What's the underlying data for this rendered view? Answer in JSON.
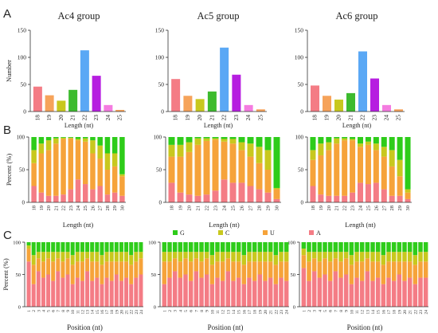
{
  "panel_letters": [
    "A",
    "B",
    "C"
  ],
  "colors": {
    "G": "#2ecc1a",
    "C": "#c8c81e",
    "U": "#f6a33a",
    "A": "#f47c85",
    "len18": "#f47c85",
    "len19": "#f6a35a",
    "len20": "#c8c81e",
    "len21": "#3dbb2e",
    "len22": "#5aa8f5",
    "len23": "#b61ee0",
    "len24": "#f47ce0",
    "len25": "#f6a35a"
  },
  "legend": [
    "G",
    "C",
    "U",
    "A"
  ],
  "chart_data": [
    {
      "type": "bar",
      "panel": "A",
      "title": "Ac4 group",
      "xlabel": "Length (nt)",
      "ylabel": "Number",
      "categories": [
        "18",
        "19",
        "20",
        "21",
        "22",
        "23",
        "24",
        "25"
      ],
      "values": [
        46,
        30,
        20,
        40,
        113,
        66,
        12,
        3
      ],
      "ylim": [
        0,
        150
      ],
      "yticks": [
        "0",
        "50",
        "100",
        "150"
      ]
    },
    {
      "type": "bar",
      "panel": "A",
      "title": "Ac5 group",
      "xlabel": "Length (nt)",
      "ylabel": "",
      "categories": [
        "18",
        "19",
        "20",
        "21",
        "22",
        "23",
        "24",
        "25"
      ],
      "values": [
        60,
        29,
        23,
        37,
        118,
        68,
        12,
        4
      ],
      "ylim": [
        0,
        150
      ],
      "yticks": [
        "0",
        "50",
        "100",
        "150"
      ]
    },
    {
      "type": "bar",
      "panel": "A",
      "title": "Ac6 group",
      "xlabel": "Length (nt)",
      "ylabel": "",
      "categories": [
        "18",
        "19",
        "20",
        "21",
        "22",
        "23",
        "24",
        "25"
      ],
      "values": [
        48,
        29,
        22,
        34,
        111,
        61,
        12,
        4
      ],
      "ylim": [
        0,
        150
      ],
      "yticks": [
        "0",
        "50",
        "100",
        "150"
      ]
    },
    {
      "type": "bar",
      "stacked": true,
      "panel": "B",
      "xlabel": "Length (nt)",
      "ylabel": "Percent (%)",
      "categories": [
        "18",
        "19",
        "20",
        "21",
        "22",
        "23",
        "24",
        "25",
        "26",
        "27",
        "28",
        "29",
        "30"
      ],
      "ylim": [
        0,
        100
      ],
      "yticks": [
        "0",
        "50",
        "100"
      ],
      "series": [
        {
          "name": "A",
          "values": [
            25,
            15,
            10,
            10,
            12,
            20,
            35,
            28,
            20,
            25,
            12,
            15,
            10
          ]
        },
        {
          "name": "U",
          "values": [
            35,
            60,
            70,
            80,
            85,
            78,
            60,
            65,
            55,
            42,
            38,
            40,
            30
          ]
        },
        {
          "name": "C",
          "values": [
            20,
            15,
            15,
            8,
            2,
            1,
            2,
            5,
            20,
            20,
            25,
            20,
            3
          ]
        },
        {
          "name": "G",
          "values": [
            20,
            10,
            5,
            2,
            1,
            1,
            3,
            2,
            5,
            13,
            25,
            25,
            57
          ]
        }
      ]
    },
    {
      "type": "bar",
      "stacked": true,
      "panel": "B",
      "xlabel": "Length (nt)",
      "ylabel": "",
      "categories": [
        "18",
        "19",
        "20",
        "21",
        "22",
        "23",
        "24",
        "25",
        "26",
        "27",
        "28",
        "29",
        "30"
      ],
      "ylim": [
        0,
        100
      ],
      "yticks": [
        "0",
        "50",
        "100"
      ],
      "series": [
        {
          "name": "A",
          "values": [
            30,
            15,
            12,
            10,
            12,
            18,
            35,
            30,
            30,
            25,
            20,
            15,
            5
          ]
        },
        {
          "name": "U",
          "values": [
            40,
            55,
            65,
            78,
            82,
            78,
            58,
            60,
            50,
            45,
            40,
            35,
            15
          ]
        },
        {
          "name": "C",
          "values": [
            18,
            18,
            15,
            10,
            4,
            2,
            4,
            7,
            12,
            20,
            25,
            30,
            2
          ]
        },
        {
          "name": "G",
          "values": [
            12,
            12,
            8,
            2,
            2,
            2,
            3,
            3,
            8,
            10,
            15,
            20,
            78
          ]
        }
      ]
    },
    {
      "type": "bar",
      "stacked": true,
      "panel": "B",
      "xlabel": "Length (nt)",
      "ylabel": "",
      "categories": [
        "18",
        "19",
        "20",
        "21",
        "22",
        "23",
        "24",
        "25",
        "26",
        "27",
        "28",
        "29",
        "30"
      ],
      "ylim": [
        0,
        100
      ],
      "yticks": [
        "0",
        "50",
        "100"
      ],
      "series": [
        {
          "name": "A",
          "values": [
            25,
            12,
            10,
            10,
            10,
            15,
            30,
            28,
            30,
            20,
            10,
            10,
            5
          ]
        },
        {
          "name": "U",
          "values": [
            40,
            60,
            70,
            80,
            85,
            80,
            55,
            60,
            50,
            50,
            45,
            30,
            10
          ]
        },
        {
          "name": "C",
          "values": [
            15,
            18,
            12,
            8,
            3,
            2,
            5,
            5,
            10,
            15,
            25,
            25,
            5
          ]
        },
        {
          "name": "G",
          "values": [
            20,
            10,
            8,
            2,
            2,
            3,
            10,
            7,
            10,
            15,
            20,
            35,
            80
          ]
        }
      ]
    },
    {
      "type": "bar",
      "stacked": true,
      "panel": "C",
      "xlabel": "Position (nt)",
      "ylabel": "Percent (%)",
      "categories": [
        "1",
        "2",
        "3",
        "4",
        "5",
        "6",
        "7",
        "8",
        "9",
        "10",
        "11",
        "12",
        "13",
        "14",
        "15",
        "16",
        "17",
        "18",
        "19",
        "20",
        "21",
        "22",
        "23",
        "24"
      ],
      "ylim": [
        0,
        100
      ],
      "yticks": [
        "0",
        "50",
        "100"
      ],
      "series": [
        {
          "name": "A",
          "values": [
            70,
            35,
            55,
            45,
            50,
            40,
            55,
            45,
            50,
            35,
            45,
            40,
            55,
            40,
            45,
            35,
            45,
            40,
            50,
            40,
            45,
            35,
            45,
            50
          ]
        },
        {
          "name": "U",
          "values": [
            20,
            30,
            20,
            25,
            25,
            30,
            20,
            25,
            25,
            30,
            25,
            30,
            20,
            30,
            25,
            30,
            25,
            30,
            20,
            30,
            25,
            30,
            25,
            25
          ]
        },
        {
          "name": "C",
          "values": [
            5,
            15,
            10,
            15,
            10,
            15,
            10,
            15,
            10,
            15,
            15,
            15,
            10,
            15,
            15,
            15,
            15,
            15,
            15,
            15,
            15,
            15,
            15,
            10
          ]
        },
        {
          "name": "G",
          "values": [
            5,
            20,
            15,
            15,
            15,
            15,
            15,
            15,
            15,
            20,
            15,
            15,
            15,
            15,
            15,
            20,
            15,
            15,
            15,
            15,
            15,
            20,
            15,
            15
          ]
        }
      ]
    },
    {
      "type": "bar",
      "stacked": true,
      "panel": "C",
      "xlabel": "Position (nt)",
      "ylabel": "",
      "categories": [
        "1",
        "2",
        "3",
        "4",
        "5",
        "6",
        "7",
        "8",
        "9",
        "10",
        "11",
        "12",
        "13",
        "14",
        "15",
        "16",
        "17",
        "18",
        "19",
        "20",
        "21",
        "22",
        "23",
        "24"
      ],
      "ylim": [
        0,
        100
      ],
      "yticks": [
        "0",
        "50",
        "100"
      ],
      "series": [
        {
          "name": "A",
          "values": [
            35,
            45,
            55,
            45,
            50,
            40,
            55,
            45,
            50,
            35,
            45,
            40,
            55,
            40,
            45,
            35,
            45,
            40,
            50,
            40,
            45,
            35,
            45,
            40
          ]
        },
        {
          "name": "U",
          "values": [
            35,
            25,
            20,
            25,
            25,
            30,
            20,
            25,
            25,
            30,
            25,
            30,
            20,
            30,
            25,
            30,
            25,
            30,
            20,
            30,
            25,
            30,
            25,
            30
          ]
        },
        {
          "name": "C",
          "values": [
            15,
            15,
            10,
            15,
            10,
            15,
            10,
            15,
            10,
            15,
            15,
            15,
            10,
            15,
            15,
            15,
            15,
            15,
            15,
            15,
            15,
            15,
            15,
            15
          ]
        },
        {
          "name": "G",
          "values": [
            15,
            15,
            15,
            15,
            15,
            15,
            15,
            15,
            15,
            20,
            15,
            15,
            15,
            15,
            15,
            20,
            15,
            15,
            15,
            15,
            15,
            20,
            15,
            15
          ]
        }
      ]
    },
    {
      "type": "bar",
      "stacked": true,
      "panel": "C",
      "xlabel": "Position (nt)",
      "ylabel": "",
      "categories": [
        "1",
        "2",
        "3",
        "4",
        "5",
        "6",
        "7",
        "8",
        "9",
        "10",
        "11",
        "12",
        "13",
        "14",
        "15",
        "16",
        "17",
        "18",
        "19",
        "20",
        "21",
        "22",
        "23",
        "24"
      ],
      "ylim": [
        0,
        100
      ],
      "yticks": [
        "0",
        "50",
        "100"
      ],
      "series": [
        {
          "name": "A",
          "values": [
            60,
            40,
            55,
            45,
            50,
            40,
            55,
            45,
            50,
            35,
            45,
            40,
            55,
            40,
            45,
            35,
            45,
            40,
            50,
            40,
            45,
            35,
            45,
            45
          ]
        },
        {
          "name": "U",
          "values": [
            20,
            30,
            20,
            25,
            25,
            30,
            20,
            25,
            25,
            30,
            25,
            30,
            20,
            30,
            25,
            30,
            25,
            30,
            20,
            30,
            25,
            30,
            25,
            25
          ]
        },
        {
          "name": "C",
          "values": [
            10,
            15,
            10,
            15,
            10,
            15,
            10,
            15,
            10,
            15,
            15,
            15,
            10,
            15,
            15,
            15,
            15,
            15,
            15,
            15,
            15,
            15,
            15,
            15
          ]
        },
        {
          "name": "G",
          "values": [
            10,
            15,
            15,
            15,
            15,
            15,
            15,
            15,
            15,
            20,
            15,
            15,
            15,
            15,
            15,
            20,
            15,
            15,
            15,
            15,
            15,
            20,
            15,
            15
          ]
        }
      ]
    }
  ]
}
